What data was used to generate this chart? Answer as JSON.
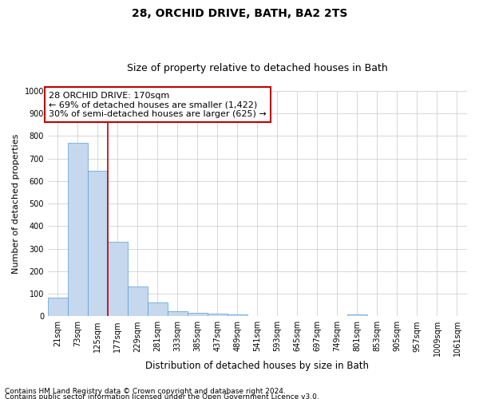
{
  "title": "28, ORCHID DRIVE, BATH, BA2 2TS",
  "subtitle": "Size of property relative to detached houses in Bath",
  "xlabel": "Distribution of detached houses by size in Bath",
  "ylabel": "Number of detached properties",
  "categories": [
    "21sqm",
    "73sqm",
    "125sqm",
    "177sqm",
    "229sqm",
    "281sqm",
    "333sqm",
    "385sqm",
    "437sqm",
    "489sqm",
    "541sqm",
    "593sqm",
    "645sqm",
    "697sqm",
    "749sqm",
    "801sqm",
    "853sqm",
    "905sqm",
    "957sqm",
    "1009sqm",
    "1061sqm"
  ],
  "values": [
    82,
    770,
    645,
    330,
    133,
    60,
    23,
    17,
    12,
    8,
    0,
    0,
    0,
    0,
    0,
    8,
    0,
    0,
    0,
    0,
    0
  ],
  "bar_color": "#c5d8ed",
  "bar_edge_color": "#5b9bd5",
  "vline_x": 2.5,
  "vline_color": "#c00000",
  "annotation_text": "28 ORCHID DRIVE: 170sqm\n← 69% of detached houses are smaller (1,422)\n30% of semi-detached houses are larger (625) →",
  "annotation_box_color": "#c00000",
  "ylim": [
    0,
    1000
  ],
  "yticks": [
    0,
    100,
    200,
    300,
    400,
    500,
    600,
    700,
    800,
    900,
    1000
  ],
  "footer_line1": "Contains HM Land Registry data © Crown copyright and database right 2024.",
  "footer_line2": "Contains public sector information licensed under the Open Government Licence v3.0.",
  "bg_color": "#ffffff",
  "grid_color": "#c8c8c8",
  "title_fontsize": 10,
  "subtitle_fontsize": 9,
  "tick_fontsize": 7,
  "ylabel_fontsize": 8,
  "xlabel_fontsize": 8.5,
  "ann_fontsize": 8,
  "footer_fontsize": 6.5
}
